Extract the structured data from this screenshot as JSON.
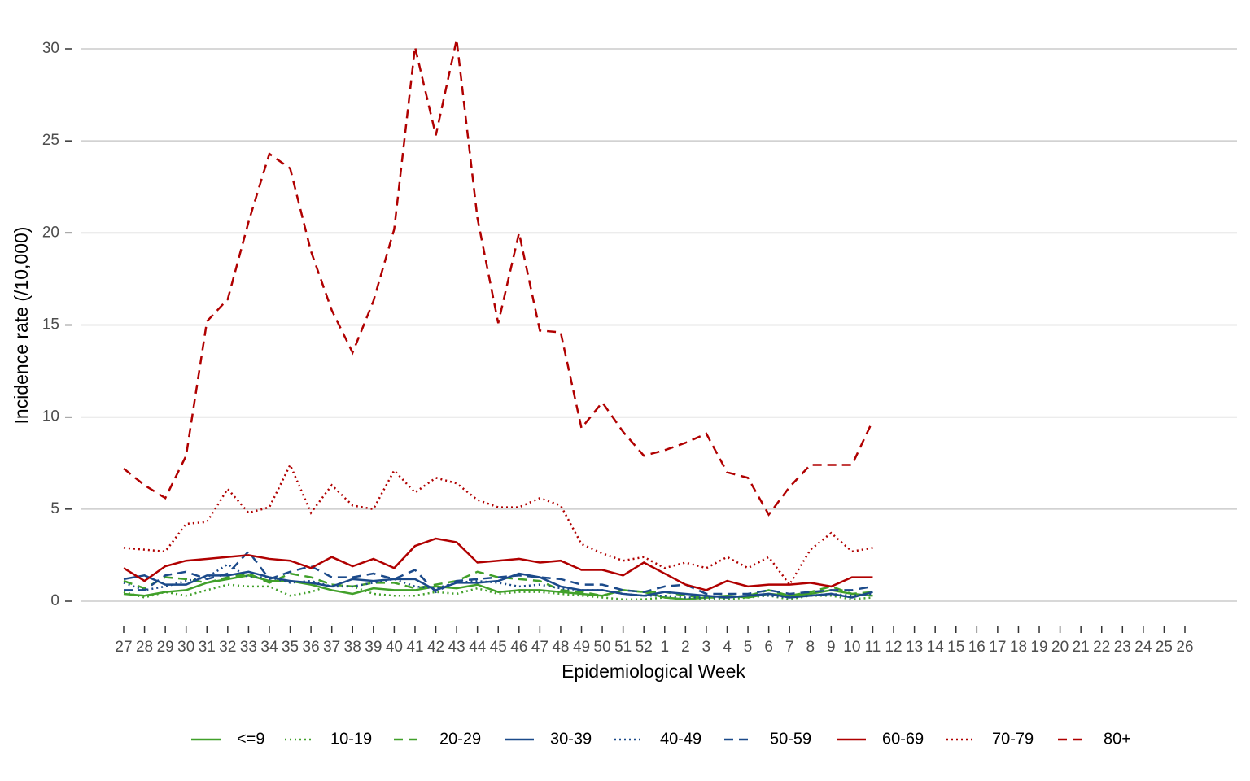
{
  "chart_data": {
    "type": "line",
    "x_label": "Epidemiological Week",
    "y_label": "Incidence rate (/10,000)",
    "categories": [
      "27",
      "28",
      "29",
      "30",
      "31",
      "32",
      "33",
      "34",
      "35",
      "36",
      "37",
      "38",
      "39",
      "40",
      "41",
      "42",
      "43",
      "44",
      "45",
      "46",
      "47",
      "48",
      "49",
      "50",
      "51",
      "52",
      "1",
      "2",
      "3",
      "4",
      "5",
      "6",
      "7",
      "8",
      "9",
      "10",
      "11",
      "12",
      "13",
      "14",
      "15",
      "16",
      "17",
      "18",
      "19",
      "20",
      "21",
      "22",
      "23",
      "24",
      "25",
      "26"
    ],
    "ylim": [
      0,
      30
    ],
    "yticks": [
      0,
      5,
      10,
      15,
      20,
      25,
      30
    ],
    "grid": true,
    "legend": "bottom",
    "series": [
      {
        "name": "<=9",
        "color": "#41a02a",
        "dash": "solid",
        "values": [
          0.4,
          0.3,
          0.5,
          0.6,
          1.0,
          1.2,
          1.4,
          1.1,
          1.1,
          0.9,
          0.6,
          0.4,
          0.7,
          0.6,
          0.6,
          0.8,
          0.7,
          0.9,
          0.5,
          0.6,
          0.6,
          0.5,
          0.4,
          0.3,
          0.6,
          0.5,
          0.2,
          0.1,
          0.2,
          0.3,
          0.2,
          0.4,
          0.3,
          0.4,
          0.6,
          0.4,
          0.3,
          null,
          null,
          null,
          null,
          null,
          null,
          null,
          null,
          null,
          null,
          null,
          null,
          null,
          null,
          null
        ]
      },
      {
        "name": "10-19",
        "color": "#41a02a",
        "dash": "dotted",
        "values": [
          0.5,
          0.2,
          0.5,
          0.3,
          0.6,
          0.9,
          0.8,
          0.8,
          0.3,
          0.5,
          0.9,
          0.8,
          0.4,
          0.3,
          0.3,
          0.5,
          0.4,
          0.7,
          0.4,
          0.5,
          0.5,
          0.4,
          0.3,
          0.2,
          0.1,
          0.1,
          0.2,
          0.1,
          0.1,
          0.1,
          0.2,
          0.3,
          0.1,
          0.3,
          0.3,
          0.1,
          0.2,
          null,
          null,
          null,
          null,
          null,
          null,
          null,
          null,
          null,
          null,
          null,
          null,
          null,
          null,
          null
        ]
      },
      {
        "name": "20-29",
        "color": "#41a02a",
        "dash": "dashed",
        "values": [
          1.1,
          0.7,
          1.3,
          1.2,
          1.0,
          1.3,
          1.5,
          1.0,
          1.5,
          1.3,
          0.9,
          0.8,
          1.0,
          1.0,
          0.7,
          0.9,
          1.1,
          1.6,
          1.3,
          1.2,
          1.1,
          0.6,
          0.5,
          0.3,
          0.6,
          0.5,
          0.5,
          0.3,
          0.2,
          0.2,
          0.3,
          0.6,
          0.3,
          0.5,
          0.8,
          0.4,
          0.5,
          null,
          null,
          null,
          null,
          null,
          null,
          null,
          null,
          null,
          null,
          null,
          null,
          null,
          null,
          null
        ]
      },
      {
        "name": "30-39",
        "color": "#1b4a8a",
        "dash": "solid",
        "values": [
          1.2,
          1.4,
          0.9,
          0.9,
          1.4,
          1.4,
          1.6,
          1.3,
          1.1,
          1.0,
          0.8,
          1.2,
          1.1,
          1.2,
          1.2,
          0.6,
          1.0,
          1.0,
          1.1,
          1.5,
          1.3,
          0.8,
          0.6,
          0.6,
          0.4,
          0.3,
          0.5,
          0.4,
          0.3,
          0.2,
          0.3,
          0.4,
          0.2,
          0.3,
          0.4,
          0.2,
          0.5,
          null,
          null,
          null,
          null,
          null,
          null,
          null,
          null,
          null,
          null,
          null,
          null,
          null,
          null,
          null
        ]
      },
      {
        "name": "40-49",
        "color": "#1b4a8a",
        "dash": "dotted",
        "values": [
          1.0,
          0.6,
          0.8,
          1.1,
          1.3,
          2.0,
          1.3,
          1.3,
          1.0,
          1.1,
          0.8,
          0.8,
          1.0,
          1.2,
          0.8,
          0.7,
          1.0,
          1.1,
          1.0,
          0.8,
          0.9,
          0.7,
          0.6,
          0.6,
          0.4,
          0.3,
          0.3,
          0.2,
          0.2,
          0.2,
          0.3,
          0.3,
          0.2,
          0.3,
          0.4,
          0.3,
          0.4,
          null,
          null,
          null,
          null,
          null,
          null,
          null,
          null,
          null,
          null,
          null,
          null,
          null,
          null,
          null
        ]
      },
      {
        "name": "50-59",
        "color": "#1b4a8a",
        "dash": "dashed",
        "values": [
          0.6,
          0.6,
          1.4,
          1.6,
          1.2,
          1.5,
          2.7,
          1.2,
          1.6,
          1.9,
          1.3,
          1.3,
          1.5,
          1.2,
          1.7,
          0.5,
          1.1,
          1.2,
          1.3,
          1.4,
          1.3,
          1.2,
          0.9,
          0.9,
          0.6,
          0.5,
          0.8,
          0.9,
          0.4,
          0.4,
          0.4,
          0.6,
          0.4,
          0.5,
          0.6,
          0.6,
          0.8,
          null,
          null,
          null,
          null,
          null,
          null,
          null,
          null,
          null,
          null,
          null,
          null,
          null,
          null,
          null
        ]
      },
      {
        "name": "60-69",
        "color": "#b00000",
        "dash": "solid",
        "values": [
          1.8,
          1.1,
          1.9,
          2.2,
          2.3,
          2.4,
          2.5,
          2.3,
          2.2,
          1.8,
          2.4,
          1.9,
          2.3,
          1.8,
          3.0,
          3.4,
          3.2,
          2.1,
          2.2,
          2.3,
          2.1,
          2.2,
          1.7,
          1.7,
          1.4,
          2.1,
          1.5,
          0.9,
          0.6,
          1.1,
          0.8,
          0.9,
          0.9,
          1.0,
          0.8,
          1.3,
          1.3,
          null,
          null,
          null,
          null,
          null,
          null,
          null,
          null,
          null,
          null,
          null,
          null,
          null,
          null,
          null
        ]
      },
      {
        "name": "70-79",
        "color": "#b00000",
        "dash": "dotted",
        "values": [
          2.9,
          2.8,
          2.7,
          4.2,
          4.3,
          6.1,
          4.8,
          5.1,
          7.4,
          4.8,
          6.3,
          5.2,
          5.0,
          7.1,
          5.9,
          6.7,
          6.4,
          5.5,
          5.1,
          5.1,
          5.6,
          5.2,
          3.1,
          2.6,
          2.2,
          2.4,
          1.8,
          2.1,
          1.8,
          2.4,
          1.8,
          2.4,
          0.9,
          2.8,
          3.7,
          2.7,
          2.9,
          null,
          null,
          null,
          null,
          null,
          null,
          null,
          null,
          null,
          null,
          null,
          null,
          null,
          null,
          null
        ]
      },
      {
        "name": "80+",
        "color": "#b00000",
        "dash": "dashed",
        "values": [
          7.2,
          6.3,
          5.6,
          7.9,
          15.2,
          16.4,
          20.6,
          24.3,
          23.5,
          19.0,
          15.8,
          13.5,
          16.3,
          20.2,
          30.1,
          25.3,
          30.5,
          20.8,
          15.1,
          20.0,
          14.7,
          14.6,
          9.4,
          10.8,
          9.2,
          7.9,
          8.2,
          8.6,
          9.1,
          7.0,
          6.7,
          4.7,
          6.2,
          7.4,
          7.4,
          7.4,
          9.8,
          null,
          null,
          null,
          null,
          null,
          null,
          null,
          null,
          null,
          null,
          null,
          null,
          null,
          null,
          null
        ]
      }
    ]
  }
}
